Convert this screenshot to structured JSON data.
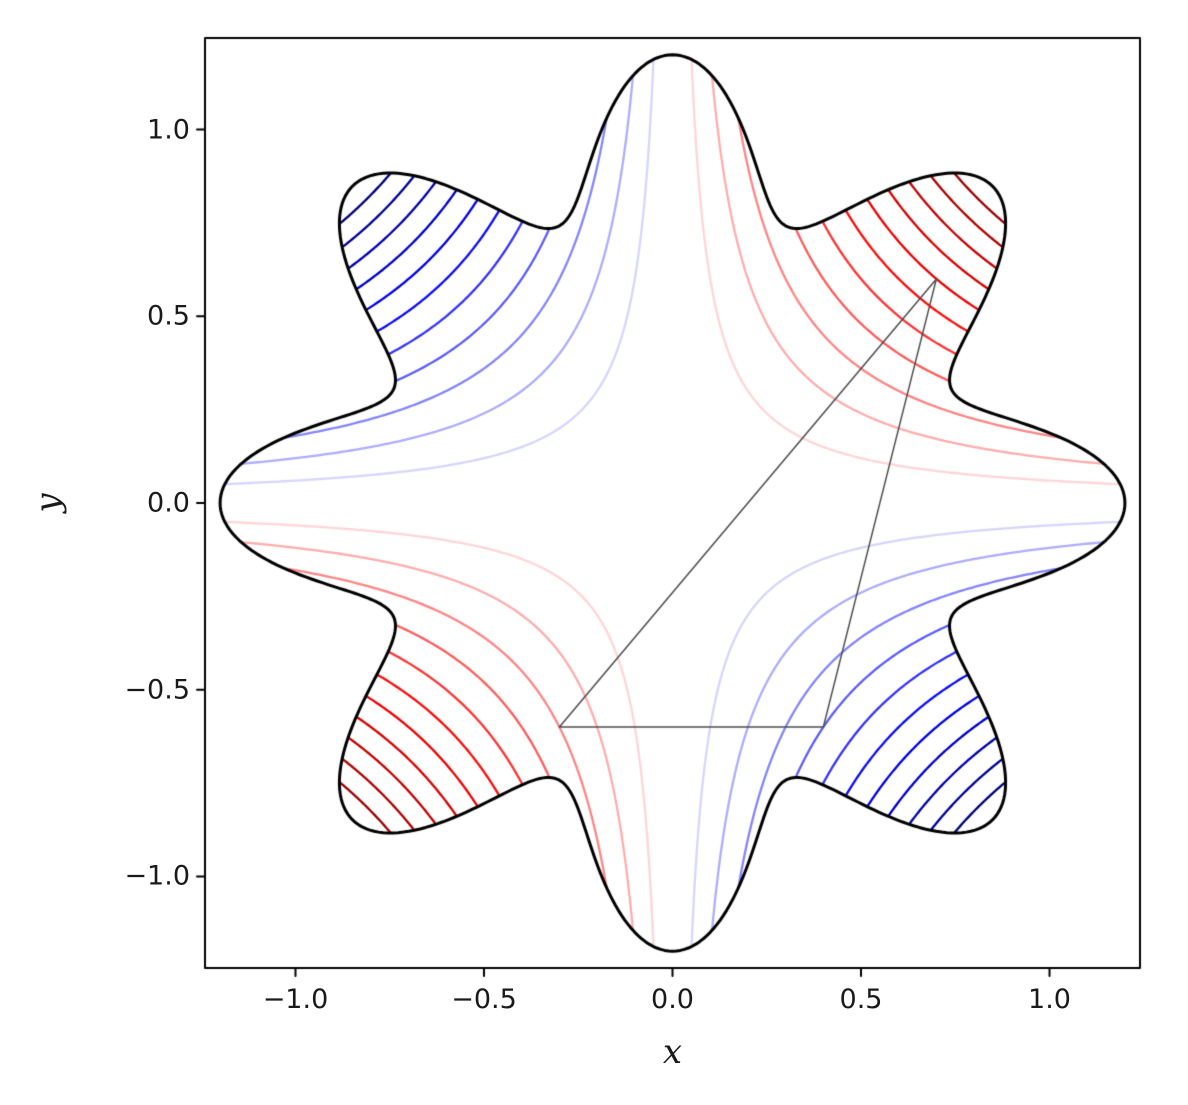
{
  "chart_data": {
    "type": "contour",
    "title": "",
    "xlabel": "x",
    "ylabel": "y",
    "xlim": [
      -1.24,
      1.24
    ],
    "ylim": [
      -1.245,
      1.245
    ],
    "xticks": [
      -1.0,
      -0.5,
      0.0,
      0.5,
      1.0
    ],
    "yticks": [
      -1.0,
      -0.5,
      0.0,
      0.5,
      1.0
    ],
    "xtick_labels": [
      "−1.0",
      "−0.5",
      "0.0",
      "0.5",
      "1.0"
    ],
    "ytick_labels": [
      "−1.0",
      "−0.5",
      "0.0",
      "0.5",
      "1.0"
    ],
    "grid": false,
    "legend": "none",
    "function": "f(x,y) = x*y (hyperbolic contour lines, red positive / blue negative)",
    "levels": [
      -0.72,
      -0.66,
      -0.6,
      -0.54,
      -0.48,
      -0.42,
      -0.36,
      -0.3,
      -0.24,
      -0.18,
      -0.12,
      -0.06,
      0.06,
      0.12,
      0.18,
      0.24,
      0.3,
      0.36,
      0.42,
      0.48,
      0.54,
      0.6,
      0.66,
      0.72
    ],
    "contour_line_width": 2.3,
    "colormap": {
      "name": "seismic",
      "vmin": -0.75,
      "vmax": 0.75,
      "stops": [
        {
          "pos": 0.0,
          "color": "#00004C"
        },
        {
          "pos": 0.25,
          "color": "#0000FF"
        },
        {
          "pos": 0.5,
          "color": "#FFFFFF"
        },
        {
          "pos": 0.75,
          "color": "#FF0000"
        },
        {
          "pos": 1.0,
          "color": "#7F0000"
        }
      ]
    },
    "clip_boundary": {
      "type": "polar",
      "formula": "r = 1 + 0.2*cos(8*theta)",
      "base_radius": 1.0,
      "amplitude": 0.2,
      "lobes": 8,
      "stroke": "#000000",
      "stroke_width": 3
    },
    "overlay_triangle": {
      "vertices": [
        [
          -0.3,
          -0.6
        ],
        [
          0.4,
          -0.6
        ],
        [
          0.7,
          0.6
        ]
      ],
      "stroke": "#4D4D4D",
      "stroke_width": 1.5
    },
    "spine_color": "#000000",
    "tick_color": "#000000",
    "background": "#FFFFFF"
  }
}
